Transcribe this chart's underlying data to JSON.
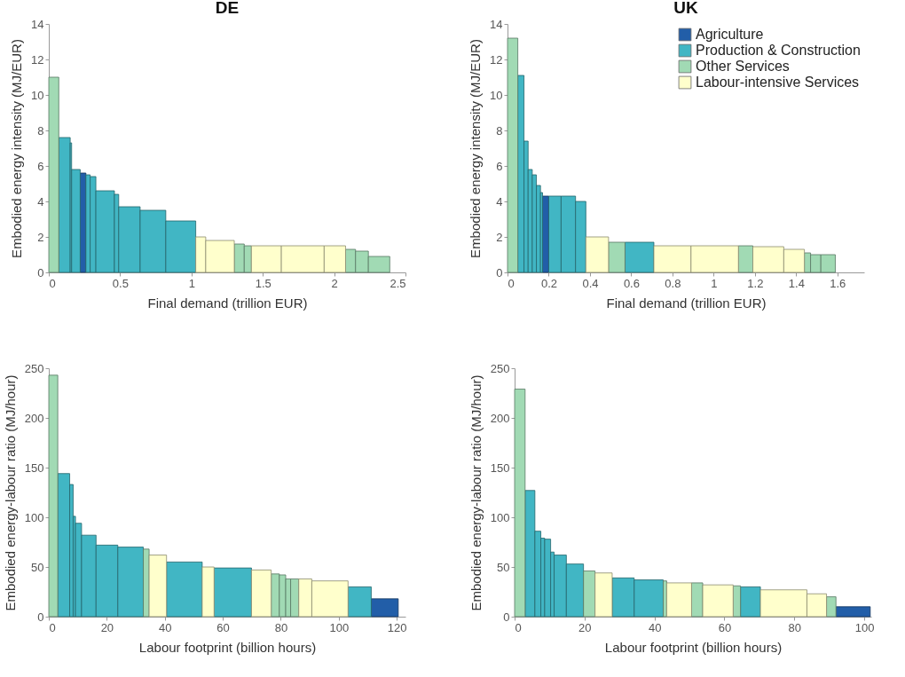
{
  "chart_data": [
    {
      "type": "histogram",
      "title": "DE",
      "xlabel": "Final demand (trillion EUR)",
      "ylabel": "Embodied energy intensity (MJ/EUR)",
      "bins": [
        0,
        0.07,
        0.15,
        0.16,
        0.22,
        0.26,
        0.29,
        0.33,
        0.46,
        0.49,
        0.64,
        0.82,
        1.03,
        1.1,
        1.3,
        1.37,
        1.42,
        1.63,
        1.93,
        2.08,
        2.15,
        2.24,
        2.39
      ],
      "series": [
        {
          "color": "#225ea8",
          "values": [
            null,
            null,
            null,
            null,
            5.6,
            null,
            null,
            null,
            null,
            null,
            null,
            null,
            null,
            null,
            null,
            null,
            null,
            null,
            null,
            null,
            null,
            null
          ]
        },
        {
          "color": "#41b6c4",
          "values": [
            null,
            7.6,
            7.3,
            5.8,
            null,
            5.5,
            5.4,
            4.6,
            4.4,
            3.7,
            3.5,
            2.9,
            null,
            null,
            null,
            null,
            null,
            null,
            null,
            null,
            null,
            null
          ]
        },
        {
          "color": "#a1dab4",
          "values": [
            11.0,
            null,
            null,
            null,
            null,
            null,
            null,
            null,
            null,
            null,
            null,
            null,
            null,
            null,
            1.6,
            1.5,
            null,
            null,
            null,
            1.3,
            1.2,
            0.9
          ]
        },
        {
          "color": "#ffffcc",
          "values": [
            null,
            null,
            null,
            null,
            null,
            null,
            null,
            null,
            null,
            null,
            null,
            null,
            2.0,
            1.8,
            null,
            null,
            1.5,
            1.5,
            1.5,
            null,
            null,
            null
          ]
        }
      ],
      "xlim": [
        0,
        2.5
      ],
      "xticks": [
        0,
        0.5,
        1,
        1.5,
        2,
        2.5
      ],
      "ylim": [
        0,
        14
      ],
      "yticks": [
        0,
        2,
        4,
        6,
        8,
        10,
        12,
        14
      ]
    },
    {
      "type": "histogram",
      "title": "UK",
      "xlabel": "Final demand (trillion EUR)",
      "ylabel": "Embodied energy intensity (MJ/EUR)",
      "bins": [
        0,
        0.05,
        0.08,
        0.1,
        0.12,
        0.14,
        0.16,
        0.17,
        0.2,
        0.26,
        0.33,
        0.38,
        0.49,
        0.57,
        0.71,
        0.89,
        1.12,
        1.19,
        1.34,
        1.44,
        1.47,
        1.52,
        1.59
      ],
      "series": [
        {
          "name": "Agriculture",
          "color": "#225ea8",
          "values": [
            null,
            null,
            null,
            null,
            null,
            null,
            null,
            4.3,
            null,
            null,
            null,
            null,
            null,
            null,
            null,
            null,
            null,
            null,
            null,
            null,
            null,
            null
          ]
        },
        {
          "name": "Production & Construction",
          "color": "#41b6c4",
          "values": [
            null,
            11.1,
            7.4,
            5.8,
            5.5,
            4.9,
            4.5,
            null,
            4.3,
            4.3,
            4.0,
            null,
            null,
            1.7,
            null,
            null,
            null,
            null,
            null,
            null,
            null,
            null
          ]
        },
        {
          "name": "Other Services",
          "color": "#a1dab4",
          "values": [
            13.2,
            null,
            null,
            null,
            null,
            null,
            null,
            null,
            null,
            null,
            null,
            null,
            1.7,
            null,
            null,
            null,
            1.5,
            null,
            null,
            1.1,
            1.0,
            1.0
          ]
        },
        {
          "name": "Labour-intensive Services",
          "color": "#ffffcc",
          "values": [
            null,
            null,
            null,
            null,
            null,
            null,
            null,
            null,
            null,
            null,
            null,
            2.0,
            null,
            null,
            1.5,
            1.5,
            null,
            1.45,
            1.3,
            null,
            null,
            null
          ]
        }
      ],
      "xlim": [
        0,
        1.73
      ],
      "xticks": [
        0,
        0.2,
        0.4,
        0.6,
        0.8,
        1,
        1.2,
        1.4,
        1.6
      ],
      "ylim": [
        0,
        14
      ],
      "yticks": [
        0,
        2,
        4,
        6,
        8,
        10,
        12,
        14
      ],
      "legend": "top right"
    },
    {
      "type": "histogram",
      "xlabel": "Labour footprint (billion hours)",
      "ylabel": "Embodied energy-labour ratio (MJ/hour)",
      "bins": [
        0,
        3.1,
        7.2,
        8.4,
        9.2,
        11.3,
        16.3,
        23.8,
        32.6,
        34.6,
        40.6,
        52.9,
        57,
        69.9,
        76.7,
        79.5,
        81.7,
        83.4,
        86.2,
        90.7,
        103.2,
        111.2,
        120.5
      ],
      "series": [
        {
          "color": "#225ea8",
          "values": [
            null,
            null,
            null,
            null,
            null,
            null,
            null,
            null,
            null,
            null,
            null,
            null,
            null,
            null,
            null,
            null,
            null,
            null,
            null,
            null,
            null,
            18
          ]
        },
        {
          "color": "#41b6c4",
          "values": [
            null,
            144,
            133,
            101,
            94,
            82,
            72,
            70,
            null,
            null,
            55,
            null,
            49,
            null,
            null,
            null,
            null,
            null,
            null,
            null,
            30,
            null
          ]
        },
        {
          "color": "#a1dab4",
          "values": [
            243,
            null,
            null,
            null,
            null,
            null,
            null,
            null,
            68,
            null,
            null,
            null,
            null,
            null,
            43,
            42,
            38,
            38,
            null,
            null,
            null,
            null
          ]
        },
        {
          "color": "#ffffcc",
          "values": [
            null,
            null,
            null,
            null,
            null,
            null,
            null,
            null,
            null,
            62,
            null,
            50,
            null,
            47,
            null,
            null,
            null,
            null,
            38,
            36,
            null,
            null
          ]
        }
      ],
      "xlim": [
        0,
        123
      ],
      "xticks": [
        0,
        20,
        40,
        60,
        80,
        100,
        120
      ],
      "ylim": [
        0,
        250
      ],
      "yticks": [
        0,
        50,
        100,
        150,
        200,
        250
      ]
    },
    {
      "type": "histogram",
      "xlabel": "Labour footprint (billion hours)",
      "ylabel": "Embodied energy-labour ratio (MJ/hour)",
      "bins": [
        0,
        3,
        5.8,
        7.5,
        8.6,
        10.3,
        11.3,
        14.8,
        19.7,
        23,
        27.9,
        34.2,
        42.5,
        43.5,
        50.6,
        53.8,
        62.5,
        64.6,
        70.3,
        83.6,
        89.2,
        91.9,
        101.7
      ],
      "series": [
        {
          "color": "#225ea8",
          "values": [
            null,
            null,
            null,
            null,
            null,
            null,
            null,
            null,
            null,
            null,
            null,
            null,
            null,
            null,
            null,
            null,
            null,
            null,
            null,
            null,
            null,
            10
          ]
        },
        {
          "color": "#41b6c4",
          "values": [
            null,
            127,
            86,
            79,
            78,
            65,
            62,
            53,
            null,
            null,
            39,
            37,
            null,
            null,
            null,
            null,
            null,
            30,
            null,
            null,
            null,
            null
          ]
        },
        {
          "color": "#a1dab4",
          "values": [
            229,
            null,
            null,
            null,
            null,
            null,
            null,
            null,
            46,
            null,
            null,
            null,
            36,
            null,
            34,
            null,
            31,
            null,
            null,
            null,
            20,
            null
          ]
        },
        {
          "color": "#ffffcc",
          "values": [
            null,
            null,
            null,
            null,
            null,
            null,
            null,
            null,
            null,
            44,
            null,
            null,
            null,
            34,
            null,
            32,
            null,
            null,
            27,
            23,
            null,
            null
          ]
        }
      ],
      "xlim": [
        0,
        102
      ],
      "xticks": [
        0,
        20,
        40,
        60,
        80,
        100
      ],
      "ylim": [
        0,
        250
      ],
      "yticks": [
        0,
        50,
        100,
        150,
        200,
        250
      ]
    }
  ]
}
